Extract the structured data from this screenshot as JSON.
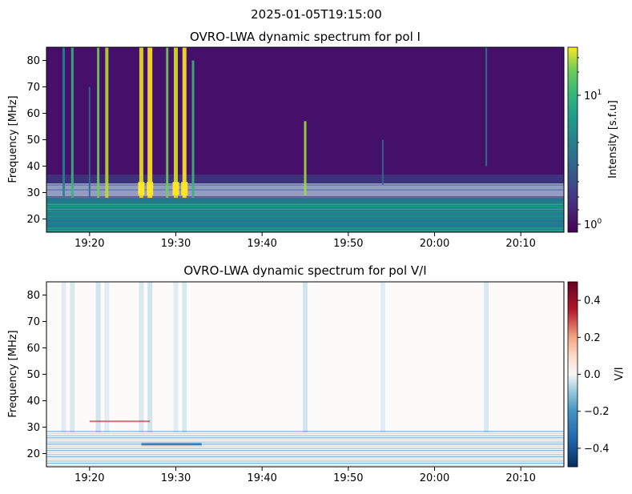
{
  "suptitle": "2025-01-05T19:15:00",
  "chart_data": [
    {
      "type": "heatmap",
      "title": "OVRO-LWA dynamic spectrum for pol I",
      "xlabel": "",
      "ylabel": "Frequency [MHz]",
      "x_range": [
        "19:15",
        "20:15"
      ],
      "xticks": [
        "19:20",
        "19:30",
        "19:40",
        "19:50",
        "20:00",
        "20:10"
      ],
      "ylim": [
        15,
        85
      ],
      "yticks": [
        20,
        30,
        40,
        50,
        60,
        70,
        80
      ],
      "colormap": "viridis",
      "color_scale": "log",
      "colorbar": {
        "label": "Intensity [s.f.u]",
        "range": [
          0.9,
          20
        ],
        "ticks": [
          "10^0",
          "10^1"
        ]
      },
      "features": {
        "background_high_band": "low intensity above ~33 MHz",
        "background_low_band": "enhanced intensity below ~28 MHz",
        "burst_times": [
          "19:17",
          "19:18",
          "19:20",
          "19:21",
          "19:22",
          "19:26",
          "19:27",
          "19:29",
          "19:30",
          "19:31",
          "19:32",
          "19:45",
          "19:54",
          "20:06"
        ]
      }
    },
    {
      "type": "heatmap",
      "title": "OVRO-LWA dynamic spectrum for pol V/I",
      "xlabel": "",
      "ylabel": "Frequency [MHz]",
      "x_range": [
        "19:15",
        "20:15"
      ],
      "xticks": [
        "19:20",
        "19:30",
        "19:40",
        "19:50",
        "20:00",
        "20:10"
      ],
      "ylim": [
        15,
        85
      ],
      "yticks": [
        20,
        30,
        40,
        50,
        60,
        70,
        80
      ],
      "colormap": "RdBu_r",
      "color_scale": "linear",
      "colorbar": {
        "label": "V/I",
        "range": [
          -0.5,
          0.5
        ],
        "ticks": [
          "0.4",
          "0.2",
          "0.0",
          "−0.2",
          "−0.4"
        ]
      }
    }
  ]
}
